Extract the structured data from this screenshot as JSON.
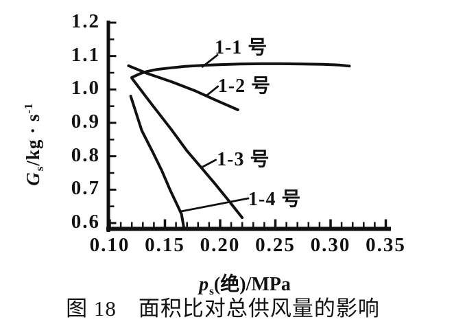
{
  "figure": {
    "caption": "图 18　面积比对总供风量的影响",
    "background": "#ffffff",
    "ink": "#111111"
  },
  "chart_data": {
    "type": "line",
    "title": "图 18 面积比对总供风量的影响",
    "xlabel": {
      "symbol": "p",
      "sub": "s",
      "rest": "(绝)/MPa",
      "full": "pₛ(绝)/MPa"
    },
    "ylabel": {
      "symbol": "G",
      "sub": "s",
      "rest": "/kg · s",
      "sup": "-1",
      "full": "Gₛ/kg·s⁻¹"
    },
    "xlim": [
      0.1,
      0.35
    ],
    "ylim": [
      0.6,
      1.2
    ],
    "grid": false,
    "legend": "inline-curve-labels",
    "x_minor_step": 0.01,
    "y_minor_step": 0.05,
    "x_ticks": [
      {
        "value": 0.1,
        "label": "0.10"
      },
      {
        "value": 0.15,
        "label": "0.15"
      },
      {
        "value": 0.2,
        "label": "0.20"
      },
      {
        "value": 0.25,
        "label": "0.25"
      },
      {
        "value": 0.3,
        "label": "0.30"
      },
      {
        "value": 0.35,
        "label": "0.35"
      }
    ],
    "y_ticks": [
      {
        "value": 1.2,
        "label": "1.2"
      },
      {
        "value": 1.1,
        "label": "1.1"
      },
      {
        "value": 1.0,
        "label": "1.0"
      },
      {
        "value": 0.9,
        "label": "0.9"
      },
      {
        "value": 0.8,
        "label": "0.8"
      },
      {
        "value": 0.7,
        "label": "0.7"
      },
      {
        "value": 0.6,
        "label": "0.6"
      }
    ],
    "series": [
      {
        "name": "1-1 号",
        "points": [
          [
            0.12,
            1.036
          ],
          [
            0.128,
            1.048
          ],
          [
            0.134,
            1.054
          ],
          [
            0.143,
            1.06
          ],
          [
            0.156,
            1.065
          ],
          [
            0.168,
            1.069
          ],
          [
            0.184,
            1.072
          ],
          [
            0.199,
            1.074
          ],
          [
            0.218,
            1.076
          ],
          [
            0.237,
            1.077
          ],
          [
            0.255,
            1.077
          ],
          [
            0.274,
            1.076
          ],
          [
            0.293,
            1.075
          ],
          [
            0.308,
            1.073
          ],
          [
            0.317,
            1.07
          ]
        ]
      },
      {
        "name": "1-2 号",
        "points": [
          [
            0.117,
            1.071
          ],
          [
            0.134,
            1.048
          ],
          [
            0.156,
            1.023
          ],
          [
            0.178,
            0.995
          ],
          [
            0.196,
            0.968
          ],
          [
            0.216,
            0.939
          ]
        ]
      },
      {
        "name": "1-3 号",
        "points": [
          [
            0.12,
            1.034
          ],
          [
            0.137,
            0.96
          ],
          [
            0.156,
            0.879
          ],
          [
            0.17,
            0.816
          ],
          [
            0.184,
            0.762
          ],
          [
            0.195,
            0.719
          ],
          [
            0.207,
            0.67
          ],
          [
            0.22,
            0.616
          ]
        ]
      },
      {
        "name": "1-4 号",
        "points": [
          [
            0.119,
            0.98
          ],
          [
            0.129,
            0.877
          ],
          [
            0.139,
            0.812
          ],
          [
            0.147,
            0.758
          ],
          [
            0.155,
            0.697
          ],
          [
            0.161,
            0.655
          ],
          [
            0.165,
            0.627
          ],
          [
            0.167,
            0.588
          ]
        ]
      }
    ],
    "annotations": [
      {
        "label": "1-1 号",
        "label_xy": [
          0.195,
          1.153
        ],
        "pointer": [
          [
            0.1975,
            1.103
          ],
          [
            0.184,
            1.068
          ]
        ]
      },
      {
        "label": "1-2 号",
        "label_xy": [
          0.198,
          1.038
        ],
        "pointer": [
          [
            0.198,
            1.009
          ],
          [
            0.187,
            0.98
          ]
        ]
      },
      {
        "label": "1-3 号",
        "label_xy": [
          0.197,
          0.818
        ],
        "pointer": [
          [
            0.196,
            0.789
          ],
          [
            0.184,
            0.768
          ]
        ]
      },
      {
        "label": "1-4 号",
        "label_xy": [
          0.2255,
          0.699
        ],
        "pointer": [
          [
            0.2255,
            0.674
          ],
          [
            0.1646,
            0.635
          ]
        ]
      }
    ]
  }
}
